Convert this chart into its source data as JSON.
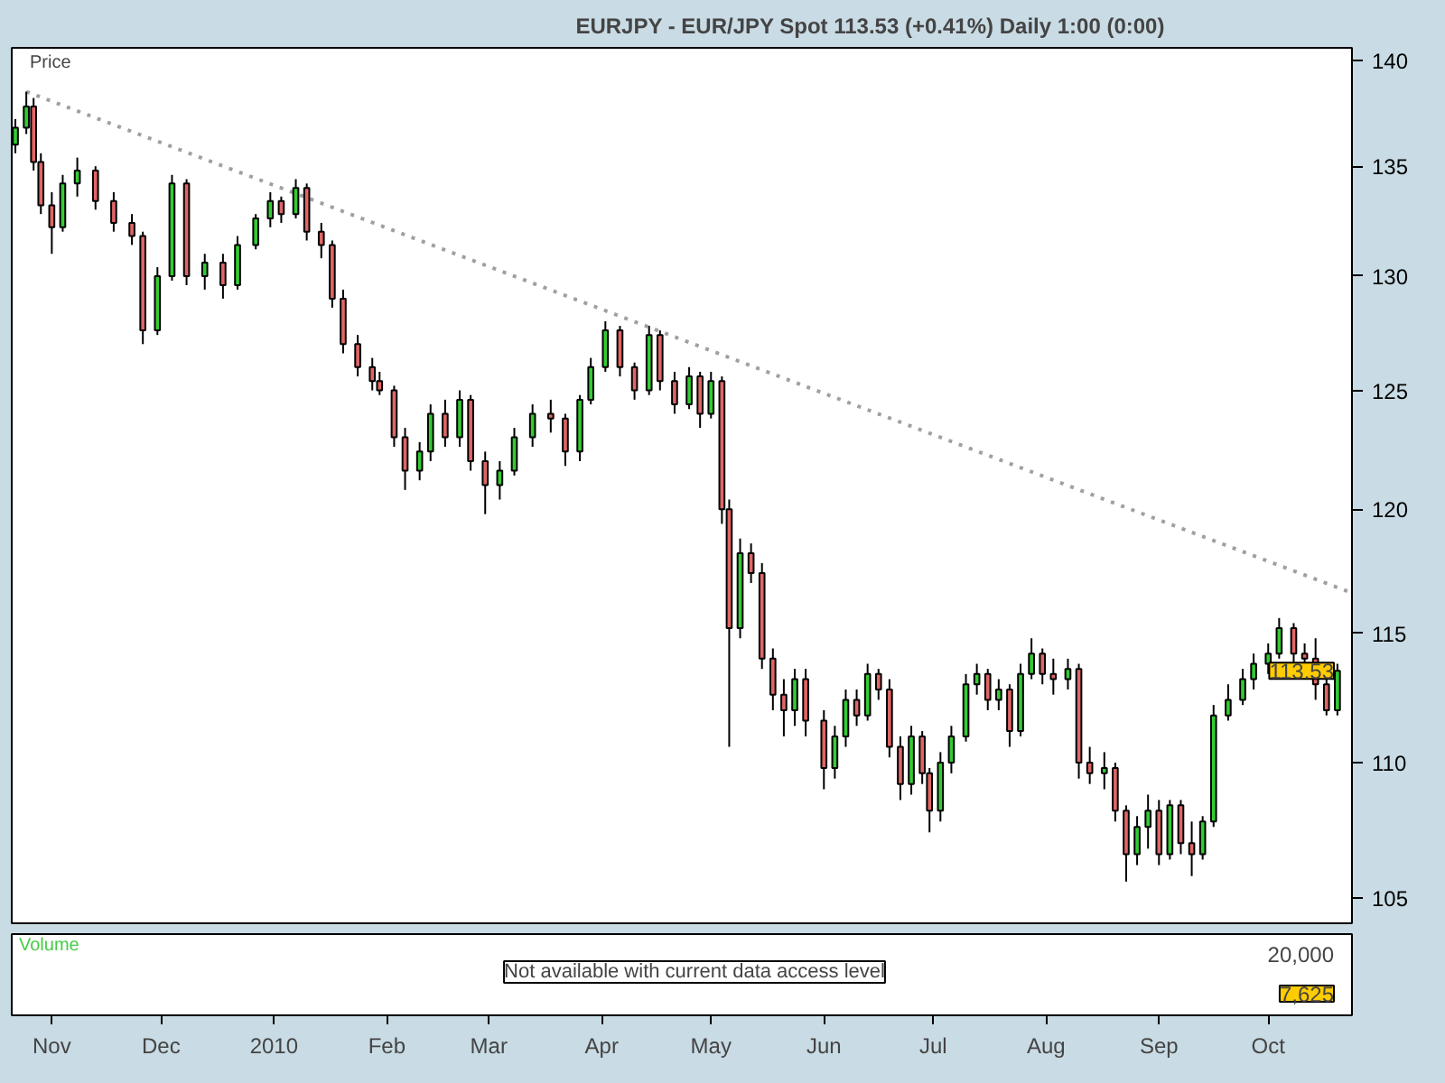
{
  "chart_data": {
    "type": "candlestick",
    "title": "EURJPY - EUR/JPY Spot    113.53 (+0.41%)    Daily  1:00 (0:00)",
    "ylabel": "Price",
    "log": true,
    "grid": false,
    "xlim": [
      "2009-10-21",
      "2010-10-24"
    ],
    "xticks": [
      {
        "value": "2009-11-01",
        "label": "Nov"
      },
      {
        "value": "2009-12-01",
        "label": "Dec"
      },
      {
        "value": "2010-01-01",
        "label": "2010"
      },
      {
        "value": "2010-02-01",
        "label": "Feb"
      },
      {
        "value": "2010-03-01",
        "label": "Mar"
      },
      {
        "value": "2010-04-01",
        "label": "Apr"
      },
      {
        "value": "2010-05-01",
        "label": "May"
      },
      {
        "value": "2010-06-01",
        "label": "Jun"
      },
      {
        "value": "2010-07-01",
        "label": "Jul"
      },
      {
        "value": "2010-08-01",
        "label": "Aug"
      },
      {
        "value": "2010-09-01",
        "label": "Sep"
      },
      {
        "value": "2010-10-01",
        "label": "Oct"
      }
    ],
    "ylim": [
      104.1,
      140.6
    ],
    "yticks": [
      105,
      110,
      115,
      120,
      125,
      130,
      135,
      140
    ],
    "x": [
      "2009-10-22",
      "2009-10-25",
      "2009-10-27",
      "2009-10-29",
      "2009-11-01",
      "2009-11-04",
      "2009-11-08",
      "2009-11-13",
      "2009-11-18",
      "2009-11-23",
      "2009-11-26",
      "2009-11-30",
      "2009-12-04",
      "2009-12-08",
      "2009-12-13",
      "2009-12-18",
      "2009-12-22",
      "2009-12-27",
      "2009-12-31",
      "2010-01-03",
      "2010-01-07",
      "2010-01-10",
      "2010-01-14",
      "2010-01-17",
      "2010-01-20",
      "2010-01-24",
      "2010-01-28",
      "2010-01-30",
      "2010-02-03",
      "2010-02-06",
      "2010-02-10",
      "2010-02-13",
      "2010-02-17",
      "2010-02-21",
      "2010-02-24",
      "2010-02-28",
      "2010-03-04",
      "2010-03-08",
      "2010-03-13",
      "2010-03-18",
      "2010-03-22",
      "2010-03-26",
      "2010-03-29",
      "2010-04-02",
      "2010-04-06",
      "2010-04-10",
      "2010-04-14",
      "2010-04-17",
      "2010-04-21",
      "2010-04-25",
      "2010-04-28",
      "2010-05-01",
      "2010-05-04",
      "2010-05-06",
      "2010-05-09",
      "2010-05-12",
      "2010-05-15",
      "2010-05-18",
      "2010-05-21",
      "2010-05-24",
      "2010-05-27",
      "2010-06-01",
      "2010-06-04",
      "2010-06-07",
      "2010-06-10",
      "2010-06-13",
      "2010-06-16",
      "2010-06-19",
      "2010-06-22",
      "2010-06-25",
      "2010-06-28",
      "2010-06-30",
      "2010-07-03",
      "2010-07-06",
      "2010-07-10",
      "2010-07-13",
      "2010-07-16",
      "2010-07-19",
      "2010-07-22",
      "2010-07-25",
      "2010-07-28",
      "2010-07-31",
      "2010-08-03",
      "2010-08-07",
      "2010-08-10",
      "2010-08-13",
      "2010-08-17",
      "2010-08-20",
      "2010-08-23",
      "2010-08-26",
      "2010-08-29",
      "2010-09-01",
      "2010-09-04",
      "2010-09-07",
      "2010-09-10",
      "2010-09-13",
      "2010-09-16",
      "2010-09-20",
      "2010-09-24",
      "2010-09-27",
      "2010-10-01",
      "2010-10-04",
      "2010-10-08",
      "2010-10-11",
      "2010-10-14",
      "2010-10-17",
      "2010-10-20"
    ],
    "ohlc": [
      [
        136.0,
        137.2,
        135.6,
        136.8
      ],
      [
        136.8,
        138.5,
        136.5,
        137.8
      ],
      [
        137.8,
        138.2,
        134.8,
        135.2
      ],
      [
        135.2,
        135.6,
        132.8,
        133.2
      ],
      [
        133.2,
        133.8,
        131.0,
        132.2
      ],
      [
        132.2,
        134.6,
        132.0,
        134.2
      ],
      [
        134.2,
        135.4,
        133.6,
        134.8
      ],
      [
        134.8,
        135.0,
        133.0,
        133.4
      ],
      [
        133.4,
        133.8,
        132.0,
        132.4
      ],
      [
        132.4,
        132.8,
        131.4,
        131.8
      ],
      [
        131.8,
        132.0,
        127.0,
        127.6
      ],
      [
        127.6,
        130.4,
        127.4,
        130.0
      ],
      [
        130.0,
        134.6,
        129.8,
        134.2
      ],
      [
        134.2,
        134.4,
        129.6,
        130.0
      ],
      [
        130.0,
        131.0,
        129.4,
        130.6
      ],
      [
        130.6,
        131.0,
        129.0,
        129.6
      ],
      [
        129.6,
        131.8,
        129.4,
        131.4
      ],
      [
        131.4,
        132.8,
        131.2,
        132.6
      ],
      [
        132.6,
        133.8,
        132.2,
        133.4
      ],
      [
        133.4,
        133.6,
        132.4,
        132.8
      ],
      [
        132.8,
        134.4,
        132.6,
        134.0
      ],
      [
        134.0,
        134.2,
        131.6,
        132.0
      ],
      [
        132.0,
        132.4,
        130.8,
        131.4
      ],
      [
        131.4,
        131.6,
        128.6,
        129.0
      ],
      [
        129.0,
        129.4,
        126.6,
        127.0
      ],
      [
        127.0,
        127.4,
        125.6,
        126.0
      ],
      [
        126.0,
        126.4,
        125.0,
        125.4
      ],
      [
        125.4,
        125.8,
        124.8,
        125.0
      ],
      [
        125.0,
        125.2,
        122.6,
        123.0
      ],
      [
        123.0,
        123.4,
        120.8,
        121.6
      ],
      [
        121.6,
        122.8,
        121.2,
        122.4
      ],
      [
        122.4,
        124.4,
        122.0,
        124.0
      ],
      [
        124.0,
        124.6,
        122.6,
        123.0
      ],
      [
        123.0,
        125.0,
        122.6,
        124.6
      ],
      [
        124.6,
        124.8,
        121.6,
        122.0
      ],
      [
        122.0,
        122.4,
        119.8,
        121.0
      ],
      [
        121.0,
        122.0,
        120.4,
        121.6
      ],
      [
        121.6,
        123.4,
        121.4,
        123.0
      ],
      [
        123.0,
        124.4,
        122.6,
        124.0
      ],
      [
        124.0,
        124.6,
        123.2,
        123.8
      ],
      [
        123.8,
        124.0,
        121.8,
        122.4
      ],
      [
        122.4,
        124.8,
        122.0,
        124.6
      ],
      [
        124.6,
        126.4,
        124.4,
        126.0
      ],
      [
        126.0,
        128.0,
        125.8,
        127.6
      ],
      [
        127.6,
        127.8,
        125.6,
        126.0
      ],
      [
        126.0,
        126.2,
        124.6,
        125.0
      ],
      [
        125.0,
        127.8,
        124.8,
        127.4
      ],
      [
        127.4,
        127.6,
        125.0,
        125.4
      ],
      [
        125.4,
        125.8,
        124.0,
        124.4
      ],
      [
        124.4,
        126.0,
        124.2,
        125.6
      ],
      [
        125.6,
        125.8,
        123.4,
        124.0
      ],
      [
        124.0,
        125.8,
        123.8,
        125.4
      ],
      [
        125.4,
        125.6,
        119.4,
        120.0
      ],
      [
        120.0,
        120.4,
        110.6,
        115.2
      ],
      [
        115.2,
        118.8,
        114.8,
        118.2
      ],
      [
        118.2,
        118.6,
        117.0,
        117.4
      ],
      [
        117.4,
        117.8,
        113.6,
        114.0
      ],
      [
        114.0,
        114.4,
        112.0,
        112.6
      ],
      [
        112.6,
        113.2,
        111.0,
        112.0
      ],
      [
        112.0,
        113.6,
        111.4,
        113.2
      ],
      [
        113.2,
        113.6,
        111.0,
        111.6
      ],
      [
        111.6,
        112.0,
        109.0,
        109.8
      ],
      [
        109.8,
        111.4,
        109.4,
        111.0
      ],
      [
        111.0,
        112.8,
        110.6,
        112.4
      ],
      [
        112.4,
        112.8,
        111.4,
        111.8
      ],
      [
        111.8,
        113.8,
        111.6,
        113.4
      ],
      [
        113.4,
        113.6,
        112.4,
        112.8
      ],
      [
        112.8,
        113.2,
        110.2,
        110.6
      ],
      [
        110.6,
        111.0,
        108.6,
        109.2
      ],
      [
        109.2,
        111.4,
        108.8,
        111.0
      ],
      [
        111.0,
        111.2,
        109.2,
        109.6
      ],
      [
        109.6,
        109.8,
        107.4,
        108.2
      ],
      [
        108.2,
        110.4,
        107.8,
        110.0
      ],
      [
        110.0,
        111.4,
        109.6,
        111.0
      ],
      [
        111.0,
        113.4,
        110.8,
        113.0
      ],
      [
        113.0,
        113.8,
        112.6,
        113.4
      ],
      [
        113.4,
        113.6,
        112.0,
        112.4
      ],
      [
        112.4,
        113.2,
        112.0,
        112.8
      ],
      [
        112.8,
        113.0,
        110.6,
        111.2
      ],
      [
        111.2,
        113.8,
        111.0,
        113.4
      ],
      [
        113.4,
        114.8,
        113.2,
        114.2
      ],
      [
        114.2,
        114.4,
        113.0,
        113.4
      ],
      [
        113.4,
        114.0,
        112.6,
        113.2
      ],
      [
        113.2,
        114.0,
        112.8,
        113.6
      ],
      [
        113.6,
        113.8,
        109.4,
        110.0
      ],
      [
        110.0,
        110.6,
        109.2,
        109.6
      ],
      [
        109.6,
        110.4,
        109.0,
        109.8
      ],
      [
        109.8,
        110.0,
        107.8,
        108.2
      ],
      [
        108.2,
        108.4,
        105.6,
        106.6
      ],
      [
        106.6,
        108.0,
        106.2,
        107.6
      ],
      [
        107.6,
        108.8,
        106.8,
        108.2
      ],
      [
        108.2,
        108.6,
        106.2,
        106.6
      ],
      [
        106.6,
        108.6,
        106.4,
        108.4
      ],
      [
        108.4,
        108.6,
        106.6,
        107.0
      ],
      [
        107.0,
        107.8,
        105.8,
        106.6
      ],
      [
        106.6,
        108.0,
        106.4,
        107.8
      ],
      [
        107.8,
        112.2,
        107.6,
        111.8
      ],
      [
        111.8,
        113.0,
        111.6,
        112.4
      ],
      [
        112.4,
        113.6,
        112.2,
        113.2
      ],
      [
        113.2,
        114.2,
        112.8,
        113.8
      ],
      [
        113.8,
        114.6,
        113.4,
        114.2
      ],
      [
        114.2,
        115.6,
        114.0,
        115.2
      ],
      [
        115.2,
        115.4,
        113.8,
        114.2
      ],
      [
        114.2,
        114.6,
        113.6,
        114.0
      ],
      [
        114.0,
        114.8,
        112.4,
        113.0
      ],
      [
        113.0,
        113.4,
        111.8,
        112.0
      ],
      [
        112.0,
        113.8,
        111.8,
        113.53
      ]
    ],
    "colors": [
      "#33cc33",
      "#33cc33",
      "#e06666",
      "#e06666",
      "#e06666",
      "#33cc33",
      "#33cc33",
      "#e06666",
      "#e06666",
      "#e06666",
      "#e06666",
      "#33cc33",
      "#33cc33",
      "#e06666",
      "#33cc33",
      "#e06666",
      "#33cc33",
      "#33cc33",
      "#33cc33",
      "#e06666",
      "#33cc33",
      "#e06666",
      "#e06666",
      "#e06666",
      "#e06666",
      "#e06666",
      "#e06666",
      "#e06666",
      "#e06666",
      "#e06666",
      "#33cc33",
      "#33cc33",
      "#e06666",
      "#33cc33",
      "#e06666",
      "#e06666",
      "#33cc33",
      "#33cc33",
      "#33cc33",
      "#e06666",
      "#e06666",
      "#33cc33",
      "#33cc33",
      "#33cc33",
      "#e06666",
      "#e06666",
      "#33cc33",
      "#e06666",
      "#e06666",
      "#33cc33",
      "#e06666",
      "#33cc33",
      "#e06666",
      "#e06666",
      "#33cc33",
      "#e06666",
      "#e06666",
      "#e06666",
      "#e06666",
      "#33cc33",
      "#e06666",
      "#e06666",
      "#33cc33",
      "#33cc33",
      "#e06666",
      "#33cc33",
      "#e06666",
      "#e06666",
      "#e06666",
      "#33cc33",
      "#e06666",
      "#e06666",
      "#33cc33",
      "#33cc33",
      "#33cc33",
      "#33cc33",
      "#e06666",
      "#33cc33",
      "#e06666",
      "#33cc33",
      "#33cc33",
      "#e06666",
      "#e06666",
      "#33cc33",
      "#e06666",
      "#e06666",
      "#33cc33",
      "#e06666",
      "#e06666",
      "#33cc33",
      "#33cc33",
      "#e06666",
      "#33cc33",
      "#e06666",
      "#e06666",
      "#33cc33",
      "#33cc33",
      "#33cc33",
      "#33cc33",
      "#33cc33",
      "#33cc33",
      "#33cc33",
      "#e06666",
      "#e06666",
      "#e06666",
      "#e06666",
      "#33cc33"
    ],
    "series": [
      {
        "type": "line",
        "x": [
          "2009-10-25",
          "2010-10-24"
        ],
        "values": [
          138.5,
          116.6
        ],
        "color": "#a0a0a0",
        "line_style": "dotted"
      }
    ],
    "annotations": [
      {
        "text": "113.53",
        "y": 113.53
      },
      "Volume",
      "Not available with current data access level",
      "20,000",
      "7,625"
    ]
  }
}
